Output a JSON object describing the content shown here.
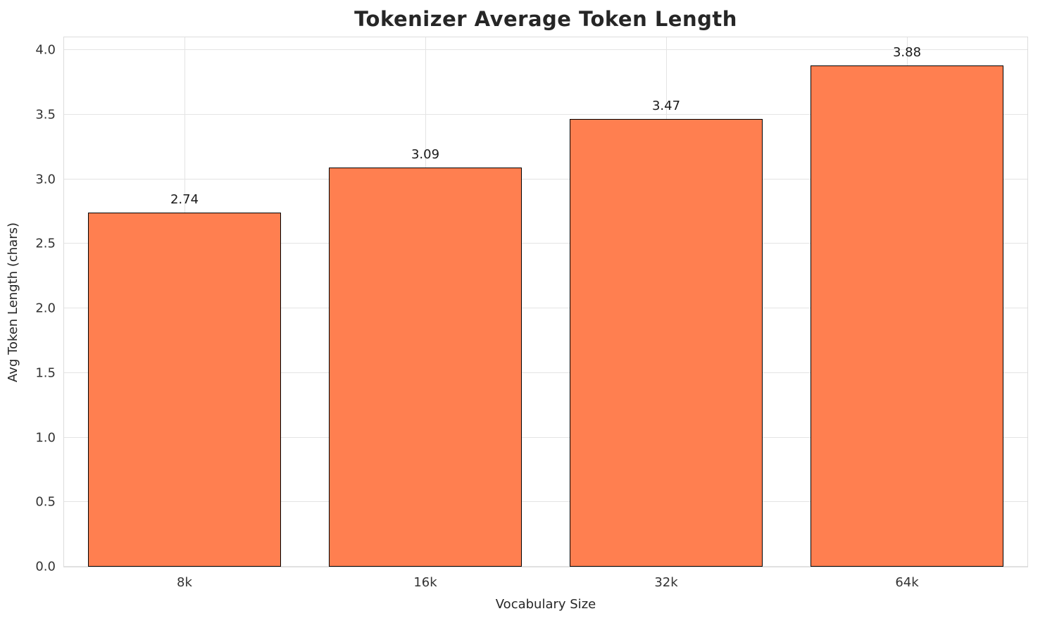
{
  "chart_data": {
    "type": "bar",
    "title": "Tokenizer Average Token Length",
    "xlabel": "Vocabulary Size",
    "ylabel": "Avg Token Length (chars)",
    "categories": [
      "8k",
      "16k",
      "32k",
      "64k"
    ],
    "values": [
      2.74,
      3.09,
      3.47,
      3.88
    ],
    "value_labels": [
      "2.74",
      "3.09",
      "3.47",
      "3.88"
    ],
    "ylim": [
      0,
      4.1
    ],
    "yticks": [
      0.0,
      0.5,
      1.0,
      1.5,
      2.0,
      2.5,
      3.0,
      3.5,
      4.0
    ],
    "ytick_labels": [
      "0.0",
      "0.5",
      "1.0",
      "1.5",
      "2.0",
      "2.5",
      "3.0",
      "3.5",
      "4.0"
    ],
    "grid": true,
    "legend": false,
    "bar_width_fraction": 0.8,
    "colors": {
      "bar_fill": "#ff7f50",
      "bar_edge": "#000000",
      "grid": "#e4e4e4",
      "background": "#ffffff",
      "text": "#262626"
    }
  }
}
